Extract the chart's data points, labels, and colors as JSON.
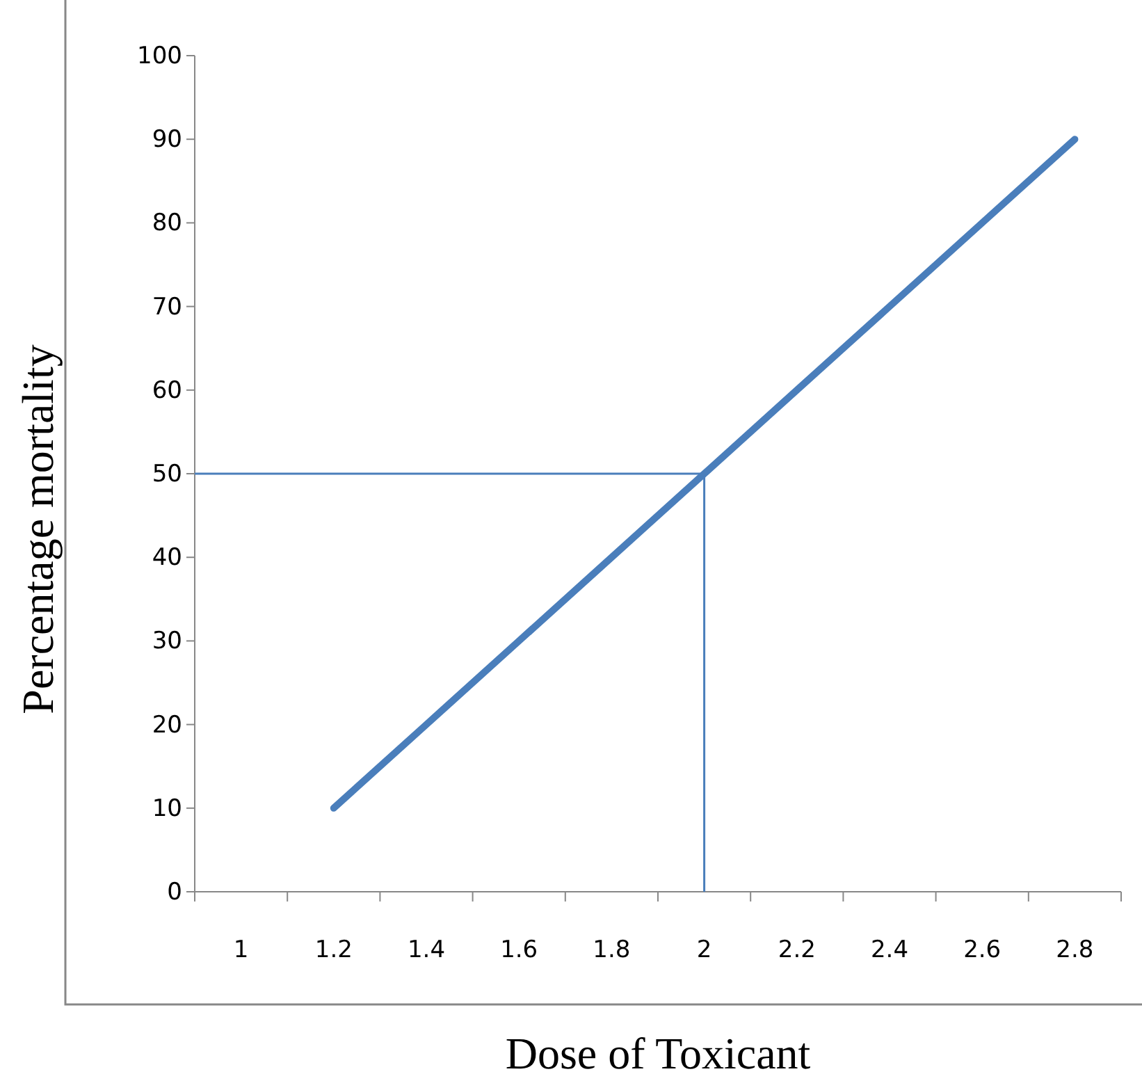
{
  "chart_data": {
    "type": "line",
    "xlabel": "Dose of Toxicant",
    "ylabel": "Percentage mortality",
    "categories": [
      "1",
      "1.2",
      "1.4",
      "1.6",
      "1.8",
      "2",
      "2.2",
      "2.4",
      "2.6",
      "2.8"
    ],
    "series": [
      {
        "color": "#4a7ebb",
        "values": [
          null,
          10,
          20,
          30,
          40,
          50,
          60,
          70,
          80,
          90
        ]
      }
    ],
    "ylim": [
      0,
      100
    ],
    "yticks": [
      0,
      10,
      20,
      30,
      40,
      50,
      60,
      70,
      80,
      90,
      100
    ],
    "ref_lines": [
      {
        "axis": "y",
        "value": 50,
        "color": "#4a7ebb"
      },
      {
        "axis": "x",
        "value": "2",
        "color": "#4a7ebb"
      }
    ],
    "grid": false,
    "marker": "none",
    "line_style": "solid"
  }
}
